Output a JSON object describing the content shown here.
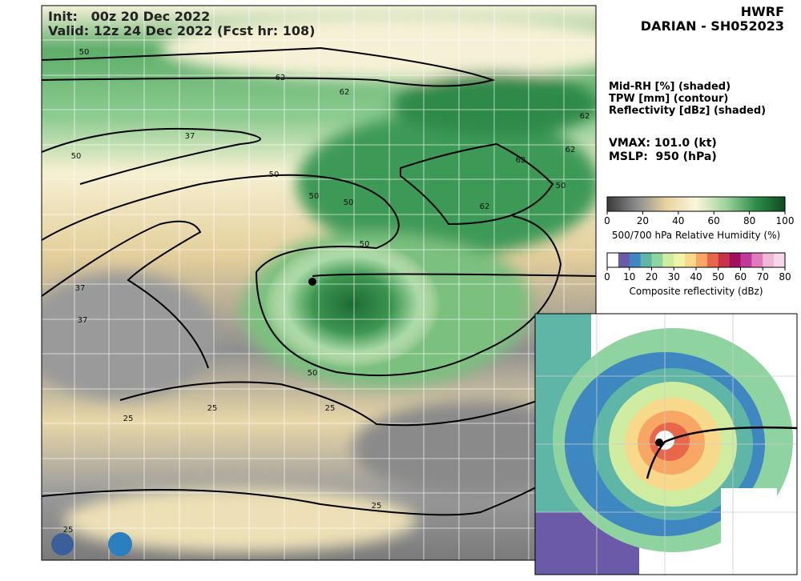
{
  "header": {
    "model": "HWRF",
    "storm": "DARIAN - SH052023"
  },
  "map": {
    "init": "Init:   00z 20 Dec 2022",
    "valid": "Valid: 12z 24 Dec 2022 (Fcst hr: 108)",
    "contour_labels": [
      "50",
      "62",
      "62",
      "37",
      "50",
      "50",
      "50",
      "50",
      "50",
      "62",
      "62",
      "62",
      "62",
      "50",
      "37",
      "37",
      "50",
      "25",
      "25",
      "25",
      "25",
      "25"
    ]
  },
  "legend": {
    "fields": [
      "Mid-RH [%] (shaded)",
      "TPW [mm] (contour)",
      "Reflectivity [dBz] (shaded)"
    ],
    "vmax": "VMAX: 101.0 (kt)",
    "mslp": "MSLP:  950 (hPa)"
  },
  "colorbars": [
    {
      "label": "500/700 hPa Relative Humidity (%)",
      "ticks": [
        0,
        20,
        40,
        60,
        80,
        100
      ],
      "colors": [
        "#3a3a3a",
        "#8c8c8c",
        "#e9d3a0",
        "#fbf6dc",
        "#9fd49e",
        "#2f8f4a",
        "#0d4a22"
      ]
    },
    {
      "label": "Composite reflectivity (dBz)",
      "ticks": [
        0,
        10,
        20,
        30,
        40,
        50,
        60,
        70,
        80
      ],
      "colors": [
        "#ffffff",
        "#6a5aa8",
        "#3f87c0",
        "#5fb6a6",
        "#8fd3a0",
        "#cfeca0",
        "#f1f3a8",
        "#f8d88a",
        "#f7a664",
        "#e8664a",
        "#c8324a",
        "#a0105e",
        "#c0399a",
        "#e07ab8",
        "#f0b8d8",
        "#f6d8ea"
      ]
    }
  ]
}
